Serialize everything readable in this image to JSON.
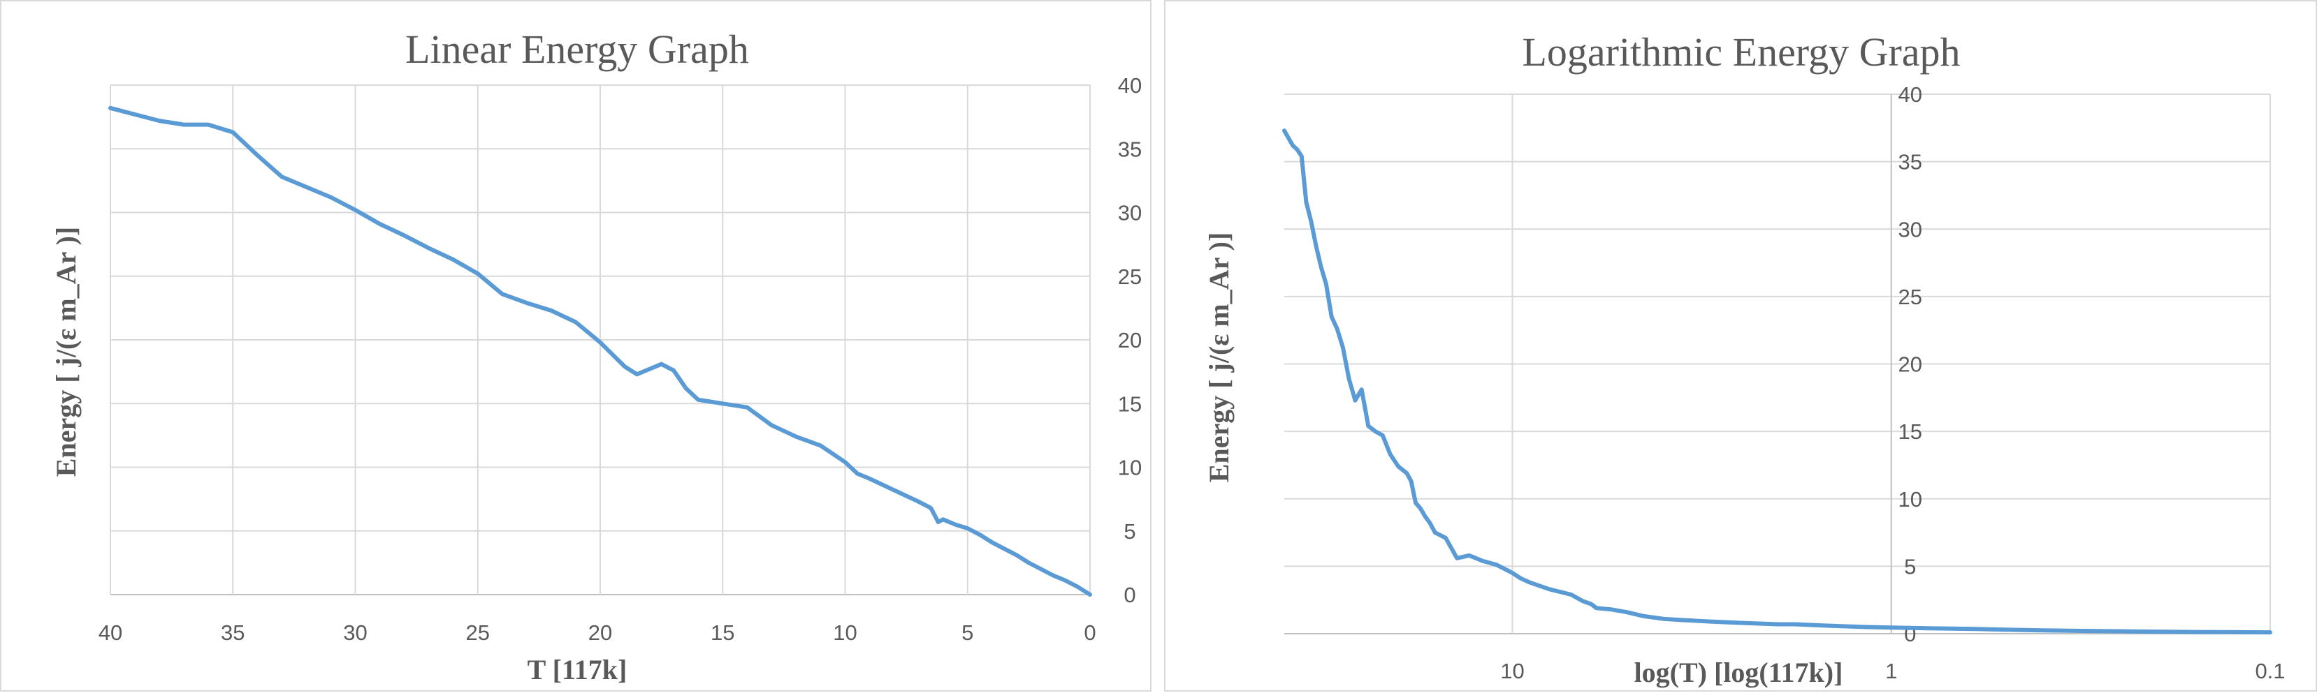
{
  "chart_data": [
    {
      "type": "line",
      "title": "Linear Energy Graph",
      "xlabel": "T [117k]",
      "ylabel": "Energy  [ j/(ε m_Ar )]",
      "xlim": [
        40,
        0
      ],
      "ylim": [
        0,
        40
      ],
      "x_ticks": [
        "40",
        "35",
        "30",
        "25",
        "20",
        "15",
        "10",
        "5",
        "0"
      ],
      "y_ticks": [
        "0",
        "5",
        "10",
        "15",
        "20",
        "25",
        "30",
        "35",
        "40"
      ],
      "grid": true,
      "legend": "none",
      "series_color": "#5b9bd5",
      "x": [
        40,
        38,
        37,
        36,
        35,
        34,
        33,
        32,
        31,
        30,
        29,
        28,
        27,
        26,
        25,
        24,
        23,
        22,
        21,
        20,
        19,
        18.5,
        18,
        17.5,
        17,
        16.5,
        16,
        15,
        14,
        13,
        12,
        11,
        10,
        9.5,
        9,
        8,
        7,
        6.5,
        6.2,
        6,
        5.5,
        5,
        4.5,
        4,
        3.5,
        3,
        2.5,
        2,
        1.5,
        1,
        0.5,
        0
      ],
      "y": [
        38.2,
        37.2,
        36.9,
        36.9,
        36.3,
        34.5,
        32.8,
        32.0,
        31.2,
        30.2,
        29.1,
        28.2,
        27.2,
        26.3,
        25.2,
        23.6,
        22.9,
        22.3,
        21.4,
        19.8,
        17.9,
        17.3,
        17.7,
        18.1,
        17.6,
        16.2,
        15.3,
        15.0,
        14.7,
        13.3,
        12.4,
        11.7,
        10.4,
        9.5,
        9.1,
        8.2,
        7.3,
        6.8,
        5.7,
        5.9,
        5.5,
        5.2,
        4.7,
        4.1,
        3.6,
        3.1,
        2.5,
        2.0,
        1.5,
        1.1,
        0.6,
        0.0
      ]
    },
    {
      "type": "line",
      "title": "Logarithmic Energy Graph",
      "xlabel": "log(T) [log(117k)]",
      "ylabel": "Energy  [ j/(ε m_Ar )]",
      "x_scale": "log",
      "xlim": [
        40,
        0.1
      ],
      "ylim": [
        0,
        40
      ],
      "x_ticks": [
        "10",
        "1",
        "0.1"
      ],
      "y_ticks": [
        "0",
        "5",
        "10",
        "15",
        "20",
        "25",
        "30",
        "35",
        "40"
      ],
      "grid": true,
      "legend": "none",
      "series_color": "#5b9bd5",
      "x": [
        40,
        38,
        37,
        36,
        35,
        34,
        33,
        32,
        31,
        30,
        29,
        28,
        27,
        26,
        25,
        24,
        23,
        22,
        21,
        20,
        19,
        18.5,
        18,
        17.5,
        17,
        16.5,
        16,
        15,
        14,
        13,
        12,
        11,
        10,
        9.5,
        9,
        8,
        7,
        6.5,
        6.2,
        6,
        5.5,
        5,
        4.5,
        4,
        3.5,
        3,
        2.5,
        2,
        1.8,
        1.5,
        1.2,
        1,
        0.8,
        0.6,
        0.5,
        0.4,
        0.3,
        0.2,
        0.15,
        0.1
      ],
      "y": [
        37.3,
        36.2,
        35.9,
        35.4,
        32.0,
        30.6,
        28.8,
        27.2,
        25.9,
        23.5,
        22.6,
        21.2,
        18.9,
        17.3,
        18.1,
        15.4,
        15.0,
        14.7,
        13.3,
        12.4,
        11.9,
        11.3,
        9.7,
        9.3,
        8.7,
        8.2,
        7.5,
        7.1,
        5.6,
        5.8,
        5.4,
        5.1,
        4.5,
        4.1,
        3.8,
        3.3,
        2.9,
        2.4,
        2.2,
        1.9,
        1.8,
        1.6,
        1.3,
        1.1,
        1.0,
        0.9,
        0.8,
        0.7,
        0.7,
        0.6,
        0.5,
        0.45,
        0.4,
        0.35,
        0.3,
        0.25,
        0.2,
        0.15,
        0.12,
        0.1
      ]
    }
  ]
}
